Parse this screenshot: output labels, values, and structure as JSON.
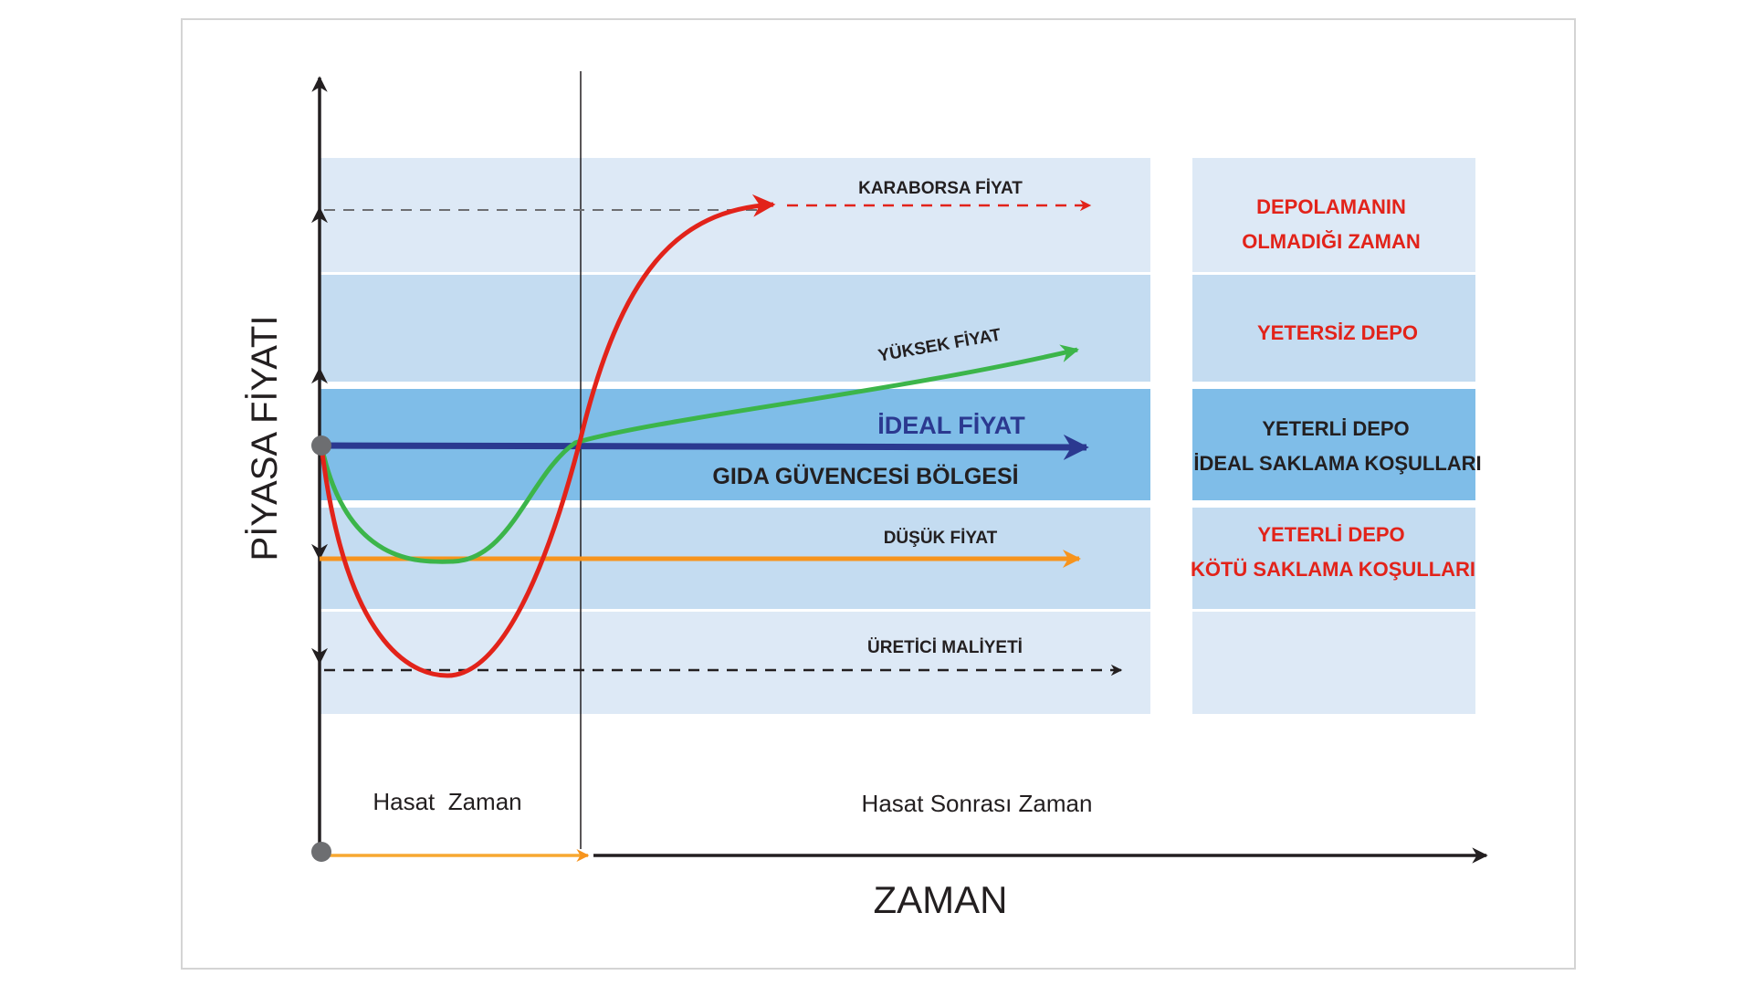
{
  "axes": {
    "y_label": "PİYASA FİYATI",
    "x_label": "ZAMAN"
  },
  "periods": {
    "harvest": "Hasat  Zaman",
    "post_harvest": "Hasat Sonrası Zaman"
  },
  "price_levels": {
    "karaborsa": "KARABORSA FİYAT",
    "yuksek": "YÜKSEK FİYAT",
    "ideal": "İDEAL FİYAT",
    "gida": "GIDA GÜVENCESİ BÖLGESİ",
    "dusuk": "DÜŞÜK FİYAT",
    "uretici": "ÜRETİCİ MALİYETİ"
  },
  "storage": {
    "none_1": "DEPOLAMANIN",
    "none_2": "OLMADIĞI ZAMAN",
    "insufficient": "YETERSİZ DEPO",
    "ideal_1": "YETERLİ DEPO",
    "ideal_2": "İDEAL SAKLAMA KOŞULLARI",
    "poor_1": "YETERLİ DEPO",
    "poor_2": "KÖTÜ SAKLAMA KOŞULLARI"
  },
  "colors": {
    "band_light": "#dde9f6",
    "band_mid": "#c4dcf1",
    "band_ideal": "#7fbde8",
    "red": "#e2231a",
    "green": "#3cb54a",
    "blue": "#2b3990",
    "orange": "#f7941d",
    "dark": "#231f20",
    "gray_dot": "#6d6e71"
  }
}
